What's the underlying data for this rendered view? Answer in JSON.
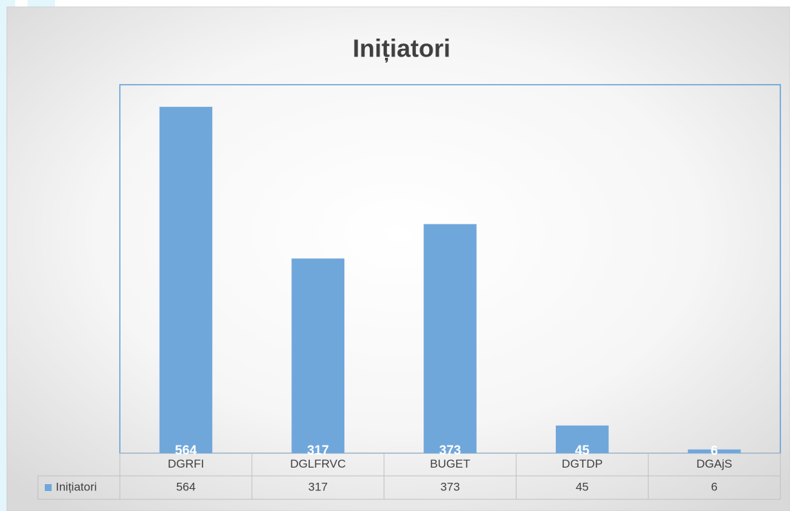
{
  "chart_data": {
    "type": "bar",
    "title": "Inițiatori",
    "categories": [
      "DGRFI",
      "DGLFRVC",
      "BUGET",
      "DGTDP",
      "DGAjS"
    ],
    "series": [
      {
        "name": "Inițiatori",
        "color": "#70a7db",
        "values": [
          564,
          317,
          373,
          45,
          6
        ]
      }
    ],
    "ylim": [
      0,
      600
    ]
  }
}
